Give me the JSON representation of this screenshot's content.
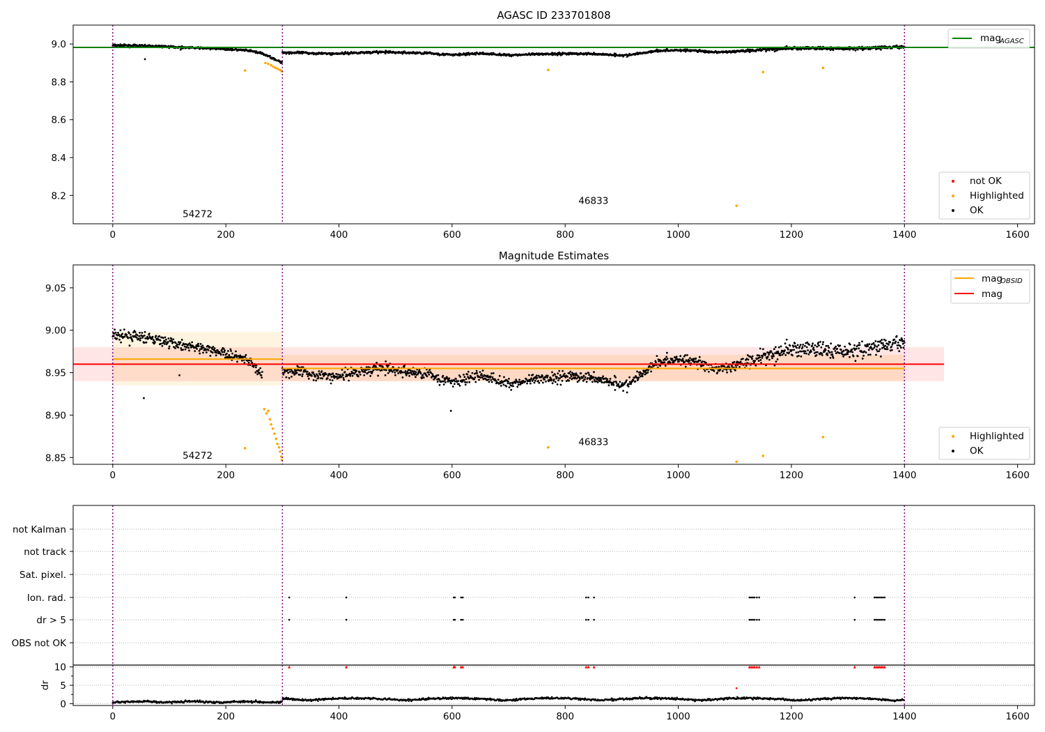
{
  "chart_data": [
    {
      "type": "scatter",
      "title": "AGASC ID 233701808",
      "xlabel": "",
      "ylabel": "",
      "xlim": [
        -70,
        1630
      ],
      "ylim": [
        8.05,
        9.1
      ],
      "xticks": [
        0,
        200,
        400,
        600,
        800,
        1000,
        1200,
        1400,
        1600
      ],
      "xtick_labels": [
        "0",
        "200",
        "400",
        "600",
        "800",
        "1000",
        "1200",
        "1400",
        "1600"
      ],
      "yticks": [
        8.2,
        8.4,
        8.6,
        8.8,
        9.0
      ],
      "ytick_labels": [
        "8.2",
        "8.4",
        "8.6",
        "8.8",
        "9.0"
      ],
      "observation_boundaries": [
        0,
        300,
        1400
      ],
      "observation_labels": [
        {
          "text": "54272",
          "x": 150,
          "y": 8.1
        },
        {
          "text": "46833",
          "x": 850,
          "y": 8.17
        }
      ],
      "lines": [
        {
          "name": "mag_AGASC",
          "label_main": "mag",
          "label_sub": "AGASC",
          "color": "#008000",
          "y": 8.982,
          "x_start": -70,
          "x_end": 1630
        }
      ],
      "highlighted_points": [
        {
          "x": 234,
          "y": 8.86
        },
        {
          "x": 270,
          "y": 8.9
        },
        {
          "x": 275,
          "y": 8.895
        },
        {
          "x": 280,
          "y": 8.888
        },
        {
          "x": 284,
          "y": 8.88
        },
        {
          "x": 288,
          "y": 8.874
        },
        {
          "x": 292,
          "y": 8.868
        },
        {
          "x": 296,
          "y": 8.862
        },
        {
          "x": 299,
          "y": 8.855
        },
        {
          "x": 770,
          "y": 8.863
        },
        {
          "x": 1103,
          "y": 8.145
        },
        {
          "x": 1150,
          "y": 8.852
        },
        {
          "x": 1256,
          "y": 8.874
        }
      ],
      "ok_points": [
        {
          "x": 57,
          "y": 8.92
        },
        {
          "x": 120,
          "y": 8.97
        }
      ],
      "legends": [
        {
          "position": "top-right",
          "items": [
            {
              "label": "mag",
              "sub": "AGASC",
              "color": "#008000",
              "kind": "line"
            }
          ]
        },
        {
          "position": "lower-right",
          "items": [
            {
              "label": "not OK",
              "color": "#ff0000",
              "kind": "marker"
            },
            {
              "label": "Highlighted",
              "color": "#ffa500",
              "kind": "marker"
            },
            {
              "label": "OK",
              "color": "#000000",
              "kind": "marker"
            }
          ]
        }
      ]
    },
    {
      "type": "scatter",
      "title": "Magnitude Estimates",
      "xlabel": "",
      "ylabel": "",
      "xlim": [
        -70,
        1630
      ],
      "ylim": [
        8.842,
        9.077
      ],
      "xticks": [
        0,
        200,
        400,
        600,
        800,
        1000,
        1200,
        1400,
        1600
      ],
      "xtick_labels": [
        "0",
        "200",
        "400",
        "600",
        "800",
        "1000",
        "1200",
        "1400",
        "1600"
      ],
      "yticks": [
        8.85,
        8.9,
        8.95,
        9.0,
        9.05
      ],
      "ytick_labels": [
        "8.85",
        "8.90",
        "8.95",
        "9.00",
        "9.05"
      ],
      "observation_boundaries": [
        0,
        300,
        1400
      ],
      "observation_labels": [
        {
          "text": "54272",
          "x": 150,
          "y": 8.852
        },
        {
          "text": "46833",
          "x": 850,
          "y": 8.868
        }
      ],
      "bands": [
        {
          "x_start": 0,
          "x_end": 300,
          "y_low": 8.935,
          "y_high": 8.998,
          "color": "#ffa500",
          "opacity": 0.12
        },
        {
          "x_start": 300,
          "x_end": 1400,
          "y_low": 8.94,
          "y_high": 8.971,
          "color": "#ffa500",
          "opacity": 0.14
        },
        {
          "x_start": -70,
          "x_end": 1470,
          "y_low": 8.94,
          "y_high": 8.98,
          "color": "#ff0000",
          "opacity": 0.1
        }
      ],
      "lines": [
        {
          "name": "mag_OBSID",
          "color": "#ffa500",
          "segments": [
            {
              "x_start": 0,
              "x_end": 300,
              "y": 8.966
            },
            {
              "x_start": 300,
              "x_end": 1400,
              "y": 8.955
            }
          ]
        },
        {
          "name": "mag",
          "color": "#ff0000",
          "segments": [
            {
              "x_start": -70,
              "x_end": 1470,
              "y": 8.96
            }
          ]
        }
      ],
      "highlighted_points": [
        {
          "x": 234,
          "y": 8.861
        },
        {
          "x": 268,
          "y": 8.907
        },
        {
          "x": 272,
          "y": 8.902
        },
        {
          "x": 275,
          "y": 8.905
        },
        {
          "x": 278,
          "y": 8.895
        },
        {
          "x": 280,
          "y": 8.889
        },
        {
          "x": 283,
          "y": 8.884
        },
        {
          "x": 286,
          "y": 8.878
        },
        {
          "x": 289,
          "y": 8.872
        },
        {
          "x": 291,
          "y": 8.866
        },
        {
          "x": 294,
          "y": 8.862
        },
        {
          "x": 296,
          "y": 8.857
        },
        {
          "x": 298,
          "y": 8.851
        },
        {
          "x": 299,
          "y": 8.847
        },
        {
          "x": 770,
          "y": 8.862
        },
        {
          "x": 1103,
          "y": 8.845
        },
        {
          "x": 1150,
          "y": 8.852
        },
        {
          "x": 1256,
          "y": 8.874
        }
      ],
      "ok_points": [
        {
          "x": 55,
          "y": 8.92
        },
        {
          "x": 598,
          "y": 8.905
        },
        {
          "x": 118,
          "y": 8.947
        }
      ],
      "legends": [
        {
          "position": "top-right",
          "items": [
            {
              "label": "mag",
              "sub": "OBSID",
              "color": "#ffa500",
              "kind": "line"
            },
            {
              "label": "mag",
              "color": "#ff0000",
              "kind": "line"
            }
          ]
        },
        {
          "position": "lower-right",
          "items": [
            {
              "label": "Highlighted",
              "color": "#ffa500",
              "kind": "marker"
            },
            {
              "label": "OK",
              "color": "#000000",
              "kind": "marker"
            }
          ]
        }
      ]
    },
    {
      "type": "scatter",
      "title": "",
      "xlabel": "",
      "ylabel": "",
      "xlim": [
        -70,
        1630
      ],
      "categories": [
        "not Kalman",
        "not track",
        "Sat. pixel.",
        "Ion. rad.",
        "dr > 5",
        "OBS not OK"
      ],
      "observation_boundaries": [
        0,
        300,
        1400
      ],
      "flag_points": {
        "Ion. rad.": [
          312,
          413,
          603,
          605,
          616,
          619,
          837,
          841,
          851,
          1126,
          1129,
          1132,
          1135,
          1139,
          1143,
          1312,
          1347,
          1350,
          1353,
          1356,
          1359,
          1362,
          1365
        ],
        "dr > 5": [
          312,
          413,
          603,
          605,
          616,
          619,
          837,
          841,
          851,
          1126,
          1129,
          1132,
          1135,
          1139,
          1143,
          1312,
          1347,
          1350,
          1353,
          1356,
          1359,
          1362,
          1365
        ]
      }
    },
    {
      "type": "scatter",
      "title": "",
      "xlabel": "",
      "ylabel": "dr",
      "xlim": [
        -70,
        1630
      ],
      "ylim": [
        -0.5,
        10.5
      ],
      "xticks": [
        0,
        200,
        400,
        600,
        800,
        1000,
        1200,
        1400,
        1600
      ],
      "xtick_labels": [
        "0",
        "200",
        "400",
        "600",
        "800",
        "1000",
        "1200",
        "1400",
        "1600"
      ],
      "yticks": [
        0,
        5,
        10
      ],
      "ytick_labels": [
        "0",
        "5",
        "10"
      ],
      "observation_boundaries": [
        0,
        300,
        1400
      ],
      "capped_points_at_10": [
        312,
        413,
        603,
        605,
        616,
        619,
        837,
        841,
        851,
        1126,
        1129,
        1132,
        1135,
        1139,
        1143,
        1312,
        1347,
        1350,
        1353,
        1356,
        1359,
        1362,
        1365
      ],
      "highlighted_points": [
        {
          "x": 1103,
          "y": 4.2
        }
      ]
    }
  ]
}
